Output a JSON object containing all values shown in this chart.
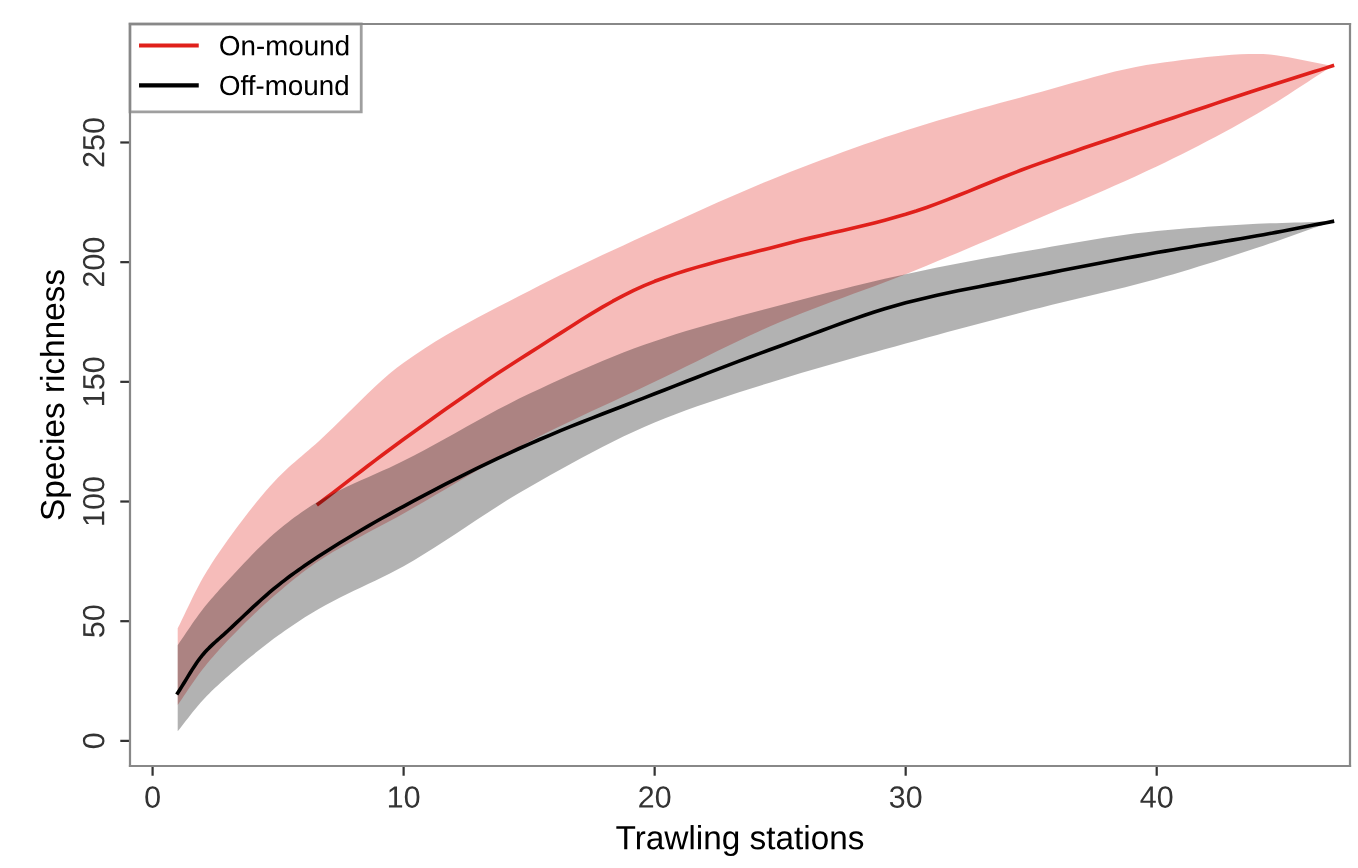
{
  "chart_data": {
    "type": "line",
    "xlabel": "Trawling stations",
    "ylabel": "Species richness",
    "x": [
      1,
      2,
      3,
      5,
      6.6,
      10,
      15,
      20,
      25,
      30,
      35,
      40,
      44,
      47
    ],
    "series": [
      {
        "name": "On-mound",
        "color": "#e0201b",
        "values": [
          null,
          null,
          null,
          null,
          99,
          126,
          162,
          192,
          207,
          220,
          240,
          258,
          272,
          282
        ],
        "lower": [
          15,
          30,
          42,
          62,
          75,
          95,
          125,
          150,
          175,
          195,
          217,
          240,
          262,
          282
        ],
        "upper": [
          47,
          68,
          84,
          110,
          125,
          158,
          188,
          213,
          236,
          255,
          270,
          283,
          287,
          282
        ]
      },
      {
        "name": "Off-mound",
        "color": "#000000",
        "values": [
          20,
          36,
          46,
          65,
          77,
          98,
          124,
          145,
          165,
          183,
          194,
          204,
          211,
          217
        ],
        "lower": [
          4,
          17,
          27,
          44,
          55,
          73,
          106,
          133,
          151,
          166,
          180,
          193,
          206,
          217
        ],
        "upper": [
          40,
          55,
          67,
          88,
          100,
          117,
          145,
          167,
          182,
          195,
          205,
          213,
          216,
          217
        ]
      }
    ],
    "xlim": [
      -0.9,
      47.7
    ],
    "ylim": [
      -10.5,
      299.5
    ],
    "xticks": [
      0,
      10,
      20,
      30,
      40
    ],
    "yticks": [
      0,
      50,
      100,
      150,
      200,
      250
    ],
    "legend": "top left",
    "grid": false,
    "marker": "none",
    "line_style": "solid"
  }
}
